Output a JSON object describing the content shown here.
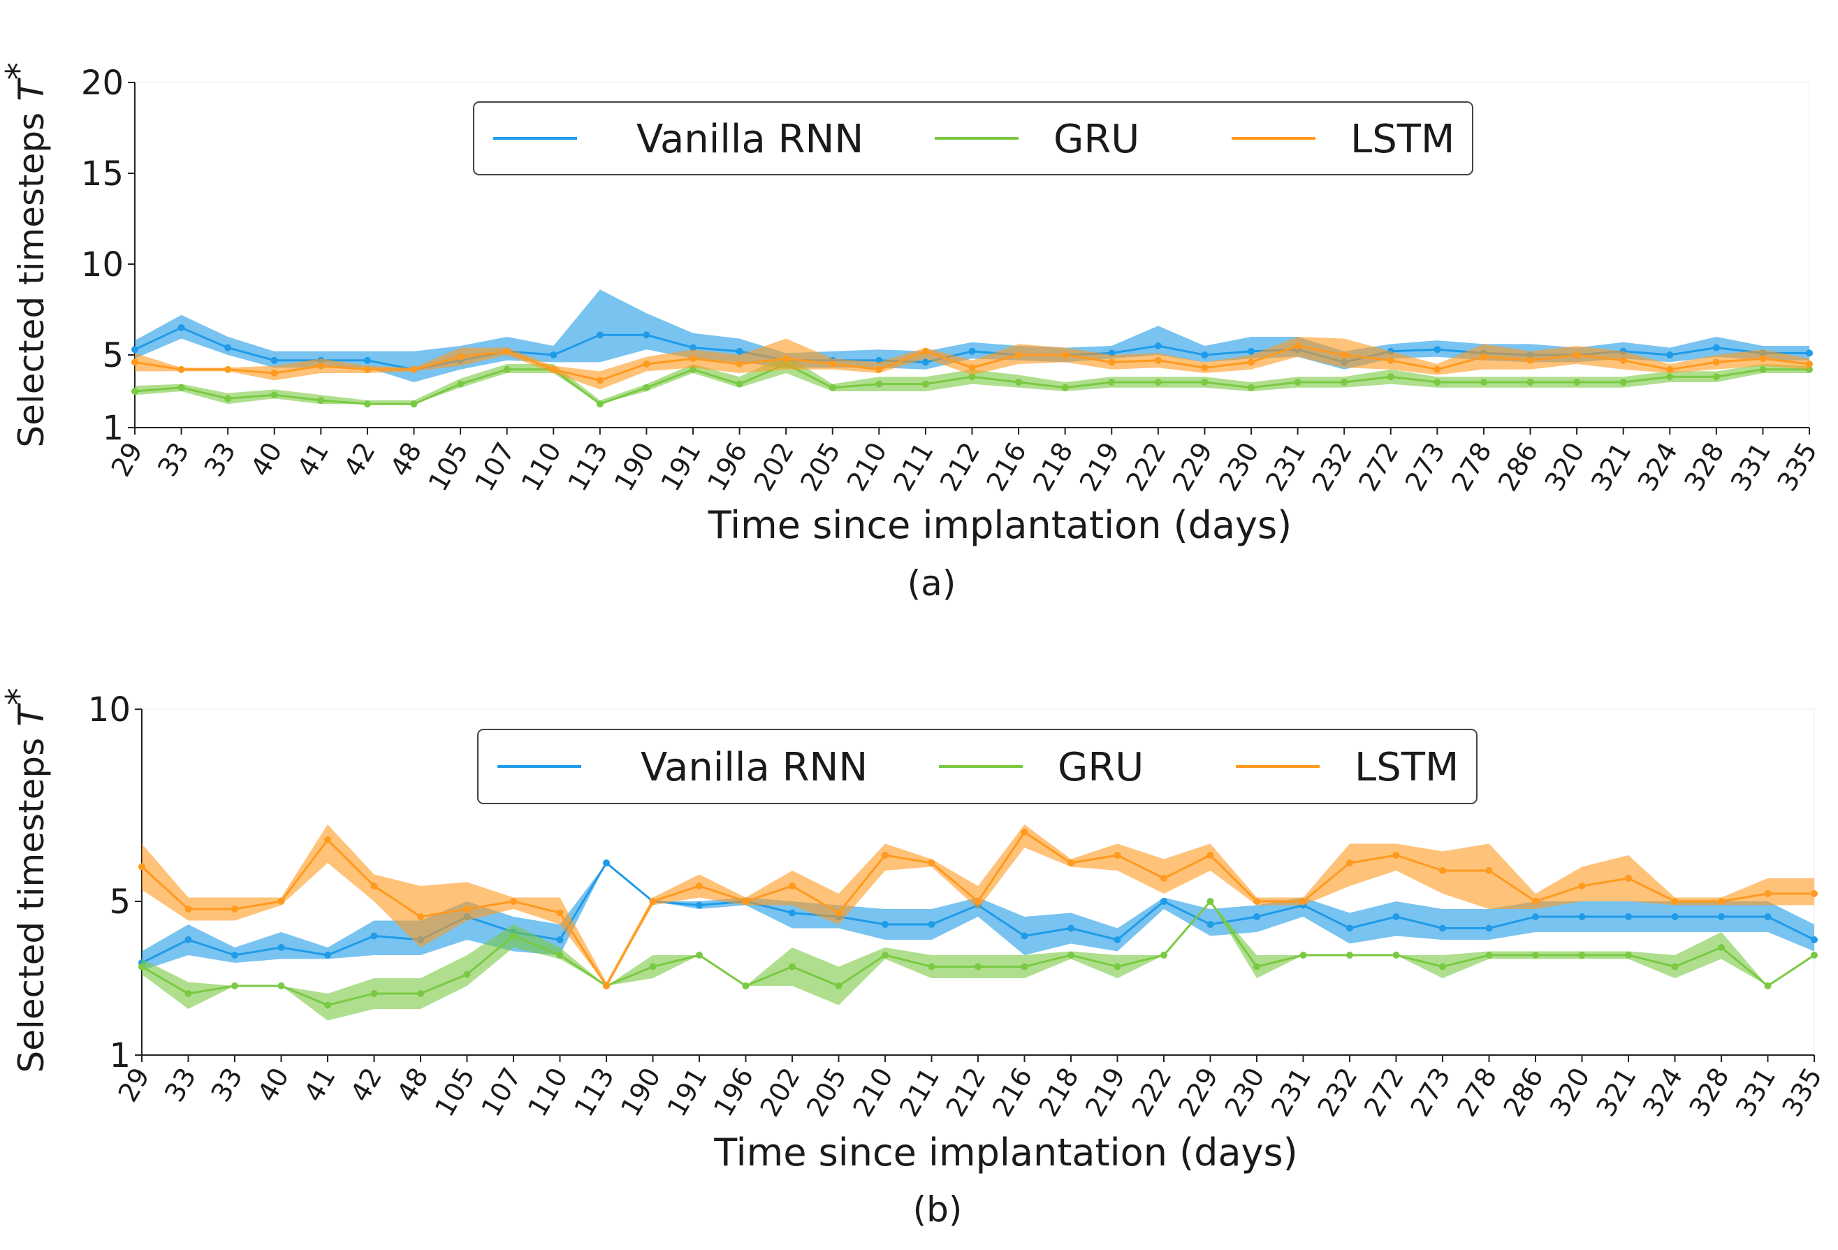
{
  "chart_data": [
    {
      "type": "line",
      "caption": "(a)",
      "ylabel_prefix": "Selected timesteps ",
      "ylabel_symbol": "T",
      "ylabel_sup": "*",
      "xlabel": "Time since implantation (days)",
      "ylim": [
        1,
        20
      ],
      "yticks": [
        1,
        5,
        10,
        15,
        20
      ],
      "categories": [
        "29",
        "33",
        "33",
        "40",
        "41",
        "42",
        "48",
        "105",
        "107",
        "110",
        "113",
        "190",
        "191",
        "196",
        "202",
        "205",
        "210",
        "211",
        "212",
        "216",
        "218",
        "219",
        "222",
        "229",
        "230",
        "231",
        "232",
        "272",
        "273",
        "278",
        "286",
        "320",
        "321",
        "324",
        "328",
        "331",
        "335"
      ],
      "legend": [
        "Vanilla RNN",
        "GRU",
        "LSTM"
      ],
      "series": [
        {
          "name": "Vanilla RNN",
          "color": "#1f9be8",
          "values": [
            5.3,
            6.5,
            5.4,
            4.7,
            4.7,
            4.7,
            4.2,
            4.7,
            5.2,
            5.0,
            6.1,
            6.1,
            5.4,
            5.2,
            4.7,
            4.7,
            4.7,
            4.6,
            5.2,
            5.0,
            5.0,
            5.1,
            5.5,
            5.0,
            5.2,
            5.3,
            4.6,
            5.2,
            5.3,
            5.1,
            5.0,
            5.0,
            5.2,
            5.0,
            5.4,
            5.1,
            5.1
          ],
          "lower": [
            4.8,
            5.9,
            5.0,
            4.3,
            4.3,
            4.3,
            3.5,
            4.2,
            4.7,
            4.6,
            4.6,
            5.3,
            4.8,
            4.6,
            4.3,
            4.3,
            4.3,
            4.2,
            4.8,
            4.7,
            4.6,
            4.8,
            5.0,
            4.6,
            4.8,
            4.9,
            4.2,
            4.8,
            4.9,
            4.7,
            4.6,
            4.6,
            4.8,
            4.6,
            4.9,
            4.7,
            4.7
          ],
          "upper": [
            5.8,
            7.2,
            6.0,
            5.2,
            5.2,
            5.2,
            5.2,
            5.5,
            6.0,
            5.5,
            8.6,
            7.3,
            6.2,
            5.9,
            5.1,
            5.2,
            5.3,
            5.2,
            5.7,
            5.5,
            5.4,
            5.5,
            6.6,
            5.5,
            6.0,
            6.0,
            5.2,
            5.6,
            5.8,
            5.6,
            5.6,
            5.4,
            5.7,
            5.4,
            6.0,
            5.5,
            5.5
          ]
        },
        {
          "name": "GRU",
          "color": "#7ac943",
          "values": [
            3.0,
            3.2,
            2.6,
            2.8,
            2.5,
            2.3,
            2.3,
            3.4,
            4.2,
            4.2,
            2.3,
            3.2,
            4.2,
            3.4,
            4.5,
            3.2,
            3.4,
            3.4,
            3.8,
            3.5,
            3.2,
            3.5,
            3.5,
            3.5,
            3.2,
            3.5,
            3.5,
            3.8,
            3.5,
            3.5,
            3.5,
            3.5,
            3.5,
            3.8,
            3.8,
            4.2,
            4.2
          ],
          "lower": [
            2.8,
            3.0,
            2.3,
            2.6,
            2.3,
            2.3,
            2.3,
            3.2,
            4.0,
            4.0,
            2.3,
            3.0,
            4.0,
            3.2,
            4.0,
            3.0,
            3.0,
            3.0,
            3.4,
            3.2,
            3.0,
            3.2,
            3.2,
            3.2,
            3.0,
            3.2,
            3.2,
            3.4,
            3.2,
            3.2,
            3.2,
            3.2,
            3.2,
            3.5,
            3.5,
            4.0,
            4.0
          ],
          "upper": [
            3.3,
            3.4,
            2.9,
            3.1,
            2.8,
            2.5,
            2.5,
            3.7,
            4.5,
            4.5,
            2.5,
            3.4,
            4.5,
            3.8,
            5.0,
            3.4,
            3.8,
            3.8,
            4.2,
            3.9,
            3.5,
            3.8,
            3.8,
            3.8,
            3.5,
            3.8,
            3.8,
            4.2,
            3.8,
            3.8,
            3.8,
            3.8,
            3.8,
            4.1,
            4.1,
            4.5,
            4.4
          ]
        },
        {
          "name": "LSTM",
          "color": "#ff9a1f",
          "values": [
            4.6,
            4.2,
            4.2,
            4.0,
            4.4,
            4.2,
            4.2,
            4.9,
            5.2,
            4.2,
            3.6,
            4.5,
            4.8,
            4.5,
            4.8,
            4.5,
            4.2,
            5.2,
            4.3,
            5.0,
            5.0,
            4.6,
            4.7,
            4.3,
            4.6,
            5.5,
            5.0,
            4.7,
            4.2,
            4.9,
            4.7,
            5.0,
            4.7,
            4.2,
            4.6,
            4.8,
            4.5
          ],
          "lower": [
            4.1,
            4.1,
            4.1,
            3.6,
            4.0,
            4.0,
            4.1,
            4.4,
            5.0,
            4.0,
            3.1,
            4.1,
            4.3,
            4.0,
            4.2,
            4.2,
            4.0,
            4.8,
            3.9,
            4.5,
            4.6,
            4.2,
            4.3,
            4.0,
            4.2,
            4.9,
            4.3,
            4.2,
            3.9,
            4.2,
            4.2,
            4.5,
            4.2,
            4.0,
            4.2,
            4.4,
            4.2
          ],
          "upper": [
            5.1,
            4.3,
            4.3,
            4.4,
            4.8,
            4.4,
            4.3,
            5.4,
            5.4,
            4.4,
            4.1,
            4.9,
            5.3,
            5.0,
            5.9,
            4.8,
            4.6,
            5.4,
            4.7,
            5.6,
            5.4,
            5.0,
            5.1,
            4.6,
            5.0,
            6.0,
            5.9,
            5.2,
            4.5,
            5.6,
            5.2,
            5.5,
            5.2,
            4.5,
            5.0,
            5.3,
            4.8
          ]
        }
      ]
    },
    {
      "type": "line",
      "caption": "(b)",
      "ylabel_prefix": "Selected timesteps ",
      "ylabel_symbol": "T",
      "ylabel_sup": "*",
      "xlabel": "Time since implantation (days)",
      "ylim": [
        1,
        10
      ],
      "yticks": [
        1,
        5,
        10
      ],
      "categories": [
        "29",
        "33",
        "33",
        "40",
        "41",
        "42",
        "48",
        "105",
        "107",
        "110",
        "113",
        "190",
        "191",
        "196",
        "202",
        "205",
        "210",
        "211",
        "212",
        "216",
        "218",
        "219",
        "222",
        "229",
        "230",
        "231",
        "232",
        "272",
        "273",
        "278",
        "286",
        "320",
        "321",
        "324",
        "328",
        "331",
        "335"
      ],
      "legend": [
        "Vanilla RNN",
        "GRU",
        "LSTM"
      ],
      "series": [
        {
          "name": "Vanilla RNN",
          "color": "#1f9be8",
          "values": [
            3.4,
            4.0,
            3.6,
            3.8,
            3.6,
            4.1,
            4.0,
            4.6,
            4.2,
            4.0,
            6.0,
            5.0,
            4.9,
            5.0,
            4.7,
            4.6,
            4.4,
            4.4,
            4.9,
            4.1,
            4.3,
            4.0,
            5.0,
            4.4,
            4.6,
            4.9,
            4.3,
            4.6,
            4.3,
            4.3,
            4.6,
            4.6,
            4.6,
            4.6,
            4.6,
            4.6,
            4.0
          ],
          "lower": [
            3.2,
            3.6,
            3.4,
            3.5,
            3.5,
            3.6,
            3.6,
            4.0,
            3.7,
            3.6,
            6.0,
            5.0,
            4.8,
            4.9,
            4.3,
            4.3,
            4.0,
            4.0,
            4.6,
            3.6,
            3.9,
            3.7,
            4.8,
            4.1,
            4.2,
            4.6,
            3.9,
            4.1,
            4.0,
            4.0,
            4.2,
            4.2,
            4.2,
            4.2,
            4.2,
            4.2,
            3.7
          ],
          "upper": [
            3.7,
            4.4,
            3.8,
            4.2,
            3.8,
            4.5,
            4.5,
            5.0,
            4.6,
            4.4,
            6.0,
            5.0,
            5.0,
            5.1,
            5.0,
            4.9,
            4.8,
            4.8,
            5.1,
            4.6,
            4.7,
            4.3,
            5.1,
            4.8,
            4.9,
            5.1,
            4.7,
            5.0,
            4.8,
            4.8,
            5.0,
            5.0,
            5.0,
            5.0,
            5.0,
            5.0,
            4.4
          ]
        },
        {
          "name": "GRU",
          "color": "#7ac943",
          "values": [
            3.3,
            2.6,
            2.8,
            2.8,
            2.3,
            2.6,
            2.6,
            3.1,
            4.1,
            3.6,
            2.8,
            3.3,
            3.6,
            2.8,
            3.3,
            2.8,
            3.6,
            3.3,
            3.3,
            3.3,
            3.6,
            3.3,
            3.6,
            5.0,
            3.3,
            3.6,
            3.6,
            3.6,
            3.3,
            3.6,
            3.6,
            3.6,
            3.6,
            3.3,
            3.8,
            2.8,
            3.6
          ],
          "lower": [
            3.1,
            2.2,
            2.8,
            2.8,
            1.9,
            2.2,
            2.2,
            2.8,
            3.8,
            3.5,
            2.8,
            3.0,
            3.6,
            2.8,
            2.8,
            2.3,
            3.5,
            3.0,
            3.0,
            3.0,
            3.5,
            3.0,
            3.6,
            5.0,
            3.0,
            3.6,
            3.6,
            3.6,
            3.0,
            3.5,
            3.5,
            3.5,
            3.5,
            3.0,
            3.5,
            2.8,
            3.6
          ],
          "upper": [
            3.5,
            2.9,
            2.8,
            2.8,
            2.6,
            3.0,
            3.0,
            3.6,
            4.4,
            3.8,
            2.8,
            3.6,
            3.6,
            2.8,
            3.8,
            3.3,
            3.8,
            3.6,
            3.6,
            3.6,
            3.7,
            3.6,
            3.6,
            5.0,
            3.6,
            3.6,
            3.6,
            3.6,
            3.6,
            3.7,
            3.7,
            3.7,
            3.7,
            3.6,
            4.2,
            2.8,
            3.6
          ]
        },
        {
          "name": "LSTM",
          "color": "#ff9a1f",
          "values": [
            5.9,
            4.8,
            4.8,
            5.0,
            6.6,
            5.4,
            4.6,
            4.8,
            5.0,
            4.7,
            2.8,
            5.0,
            5.4,
            5.0,
            5.4,
            4.7,
            6.2,
            6.0,
            5.0,
            6.8,
            6.0,
            6.2,
            5.6,
            6.2,
            5.0,
            5.0,
            6.0,
            6.2,
            5.8,
            5.8,
            5.0,
            5.4,
            5.6,
            5.0,
            5.0,
            5.2,
            5.2
          ],
          "lower": [
            5.3,
            4.5,
            4.5,
            4.9,
            6.0,
            5.0,
            3.8,
            4.5,
            4.8,
            4.4,
            2.8,
            4.9,
            5.1,
            4.9,
            4.9,
            4.4,
            5.8,
            5.9,
            4.8,
            6.4,
            5.9,
            5.8,
            5.2,
            5.8,
            4.9,
            4.9,
            5.4,
            5.8,
            5.2,
            4.8,
            4.8,
            5.0,
            5.0,
            4.9,
            4.9,
            4.9,
            4.9
          ],
          "upper": [
            6.5,
            5.1,
            5.1,
            5.1,
            7.0,
            5.7,
            5.4,
            5.5,
            5.1,
            5.1,
            2.9,
            5.1,
            5.7,
            5.1,
            5.8,
            5.2,
            6.5,
            6.1,
            5.4,
            7.0,
            6.1,
            6.5,
            6.1,
            6.5,
            5.1,
            5.1,
            6.5,
            6.5,
            6.3,
            6.5,
            5.2,
            5.9,
            6.2,
            5.1,
            5.1,
            5.6,
            5.6
          ]
        }
      ]
    }
  ]
}
